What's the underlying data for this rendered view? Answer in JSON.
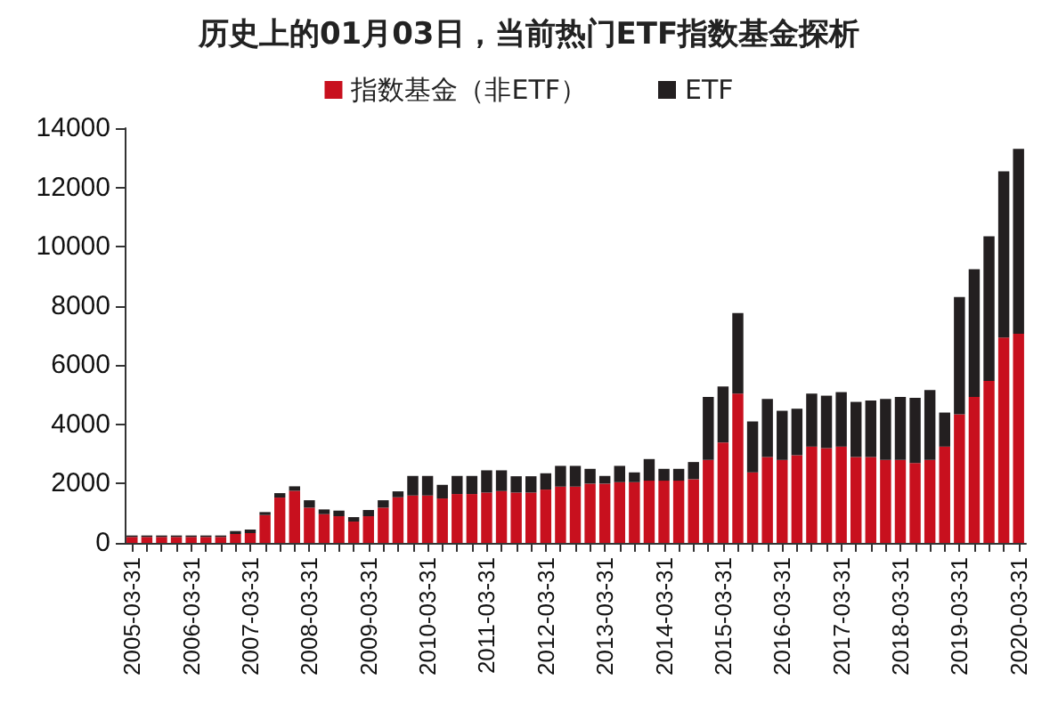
{
  "chart_data": {
    "type": "bar",
    "title": "历史上的01月03日，当前热门ETF指数基金探析",
    "stacked": true,
    "legend": "top",
    "grid": false,
    "categories": [
      "2005-03-31",
      null,
      null,
      null,
      "2006-03-31",
      null,
      null,
      null,
      "2007-03-31",
      null,
      null,
      null,
      "2008-03-31",
      null,
      null,
      null,
      "2009-03-31",
      null,
      null,
      null,
      "2010-03-31",
      null,
      null,
      null,
      "2011-03-31",
      null,
      null,
      null,
      "2012-03-31",
      null,
      null,
      null,
      "2013-03-31",
      null,
      null,
      null,
      "2014-03-31",
      null,
      null,
      null,
      "2015-03-31",
      null,
      null,
      null,
      "2016-03-31",
      null,
      null,
      null,
      "2017-03-31",
      null,
      null,
      null,
      "2018-03-31",
      null,
      null,
      null,
      "2019-03-31",
      null,
      null,
      null,
      "2020-03-31"
    ],
    "ylim": [
      0,
      14000
    ],
    "yticks": [
      0,
      2000,
      4000,
      6000,
      8000,
      10000,
      12000,
      14000
    ],
    "series": [
      {
        "name": "指数基金（非ETF）",
        "color": "#c8101e",
        "values": [
          200,
          200,
          200,
          200,
          200,
          200,
          200,
          300,
          330,
          940,
          1530,
          1760,
          1190,
          970,
          900,
          720,
          900,
          1190,
          1540,
          1600,
          1600,
          1500,
          1650,
          1650,
          1700,
          1750,
          1700,
          1700,
          1800,
          1900,
          1900,
          2000,
          2000,
          2050,
          2050,
          2100,
          2100,
          2100,
          2150,
          2800,
          3390,
          5040,
          2380,
          2900,
          2800,
          2960,
          3250,
          3200,
          3250,
          2900,
          2900,
          2800,
          2800,
          2700,
          2800,
          3250,
          4340,
          4930,
          5470,
          6930,
          7060
        ]
      },
      {
        "name": "ETF",
        "color": "#231f20",
        "values": [
          50,
          50,
          50,
          50,
          50,
          50,
          50,
          100,
          120,
          100,
          150,
          150,
          250,
          160,
          190,
          150,
          210,
          250,
          200,
          660,
          660,
          460,
          610,
          610,
          750,
          700,
          550,
          550,
          550,
          700,
          700,
          500,
          260,
          550,
          330,
          730,
          400,
          400,
          580,
          2130,
          1890,
          2720,
          1720,
          1960,
          1660,
          1570,
          1790,
          1770,
          1840,
          1860,
          1910,
          2060,
          2130,
          2200,
          2360,
          1150,
          3960,
          4310,
          4880,
          5610,
          6240
        ]
      }
    ]
  }
}
